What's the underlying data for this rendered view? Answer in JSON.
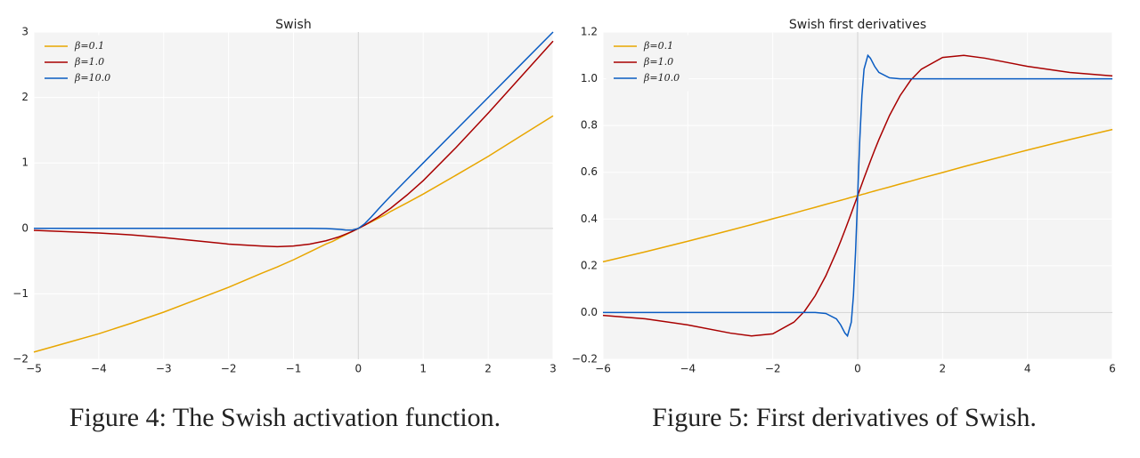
{
  "chart_data": [
    {
      "type": "line",
      "title": "Swish",
      "caption": "Figure 4: The Swish activation function.",
      "x": [
        -5,
        -4.5,
        -4,
        -3.5,
        -3,
        -2.5,
        -2,
        -1.5,
        -1.25,
        -1,
        -0.75,
        -0.5,
        -0.4,
        -0.3,
        -0.2,
        -0.1,
        0,
        0.1,
        0.2,
        0.3,
        0.4,
        0.5,
        0.75,
        1,
        1.5,
        2,
        2.5,
        3
      ],
      "series": [
        {
          "name": "β=0.1",
          "color": "#e8a600",
          "values": [
            -1.89,
            -1.75,
            -1.61,
            -1.45,
            -1.28,
            -1.09,
            -0.9,
            -0.69,
            -0.59,
            -0.48,
            -0.36,
            -0.24,
            -0.2,
            -0.15,
            -0.1,
            -0.05,
            0,
            0.05,
            0.1,
            0.15,
            0.2,
            0.26,
            0.39,
            0.525,
            0.81,
            1.1,
            1.41,
            1.72
          ]
        },
        {
          "name": "β=1.0",
          "color": "#a80000",
          "values": [
            -0.03,
            -0.05,
            -0.07,
            -0.1,
            -0.14,
            -0.19,
            -0.24,
            -0.27,
            -0.28,
            -0.27,
            -0.24,
            -0.19,
            -0.16,
            -0.13,
            -0.09,
            -0.05,
            0,
            0.05,
            0.11,
            0.17,
            0.24,
            0.31,
            0.51,
            0.73,
            1.23,
            1.76,
            2.31,
            2.86
          ]
        },
        {
          "name": "β=10.0",
          "color": "#0a5cc2",
          "values": [
            0,
            0,
            0,
            0,
            0,
            0,
            0,
            0,
            0,
            0,
            0,
            -0.003,
            -0.007,
            -0.014,
            -0.024,
            -0.027,
            0,
            0.073,
            0.176,
            0.286,
            0.393,
            0.497,
            0.75,
            1,
            1.5,
            2,
            2.5,
            3
          ]
        }
      ],
      "xlim": [
        -5,
        3
      ],
      "xticks": [
        {
          "value": -5,
          "label": "−5"
        },
        {
          "value": -4,
          "label": "−4"
        },
        {
          "value": -3,
          "label": "−3"
        },
        {
          "value": -2,
          "label": "−2"
        },
        {
          "value": -1,
          "label": "−1"
        },
        0,
        1,
        2,
        3
      ],
      "ylim": [
        -2,
        3
      ],
      "yticks": [
        {
          "value": -2,
          "label": "−2"
        },
        {
          "value": -1,
          "label": "−1"
        },
        0,
        1,
        2,
        3
      ],
      "grid": true,
      "legend": "upper left"
    },
    {
      "type": "line",
      "title": "Swish first derivatives",
      "caption": "Figure 5: First derivatives of Swish.",
      "x": [
        -6,
        -5,
        -4,
        -3,
        -2.5,
        -2,
        -1.5,
        -1.25,
        -1,
        -0.75,
        -0.5,
        -0.4,
        -0.3,
        -0.24,
        -0.15,
        -0.1,
        -0.05,
        0,
        0.05,
        0.1,
        0.15,
        0.24,
        0.3,
        0.4,
        0.5,
        0.75,
        1,
        1.25,
        1.5,
        2,
        2.5,
        3,
        4,
        5,
        6
      ],
      "series": [
        {
          "name": "β=0.1",
          "color": "#e8a600",
          "values": [
            0.217,
            0.26,
            0.305,
            0.352,
            0.376,
            0.401,
            0.425,
            0.438,
            0.45,
            0.463,
            0.475,
            0.48,
            0.485,
            0.488,
            0.493,
            0.495,
            0.498,
            0.5,
            0.502,
            0.505,
            0.507,
            0.512,
            0.515,
            0.52,
            0.525,
            0.537,
            0.55,
            0.562,
            0.575,
            0.599,
            0.624,
            0.648,
            0.695,
            0.74,
            0.783
          ]
        },
        {
          "name": "β=1.0",
          "color": "#a80000",
          "values": [
            -0.012,
            -0.027,
            -0.053,
            -0.088,
            -0.1,
            -0.091,
            -0.041,
            0.006,
            0.072,
            0.157,
            0.26,
            0.305,
            0.352,
            0.381,
            0.425,
            0.45,
            0.475,
            0.5,
            0.525,
            0.55,
            0.575,
            0.619,
            0.648,
            0.695,
            0.74,
            0.843,
            0.928,
            0.994,
            1.041,
            1.091,
            1.1,
            1.088,
            1.053,
            1.027,
            1.012
          ]
        },
        {
          "name": "β=10.0",
          "color": "#0a5cc2",
          "values": [
            0,
            0,
            0,
            0,
            0,
            0,
            0,
            0,
            0,
            -0.004,
            -0.027,
            -0.053,
            -0.088,
            -0.1,
            -0.041,
            0.072,
            0.26,
            0.5,
            0.74,
            0.928,
            1.041,
            1.1,
            1.088,
            1.053,
            1.027,
            1.004,
            1,
            1,
            1,
            1,
            1,
            1,
            1,
            1,
            1
          ]
        }
      ],
      "xlim": [
        -6,
        6
      ],
      "xticks": [
        {
          "value": -6,
          "label": "−6"
        },
        {
          "value": -4,
          "label": "−4"
        },
        {
          "value": -2,
          "label": "−2"
        },
        0,
        2,
        4,
        6
      ],
      "ylim": [
        -0.2,
        1.2
      ],
      "yticks": [
        {
          "value": -0.2,
          "label": "−0.2"
        },
        {
          "value": 0,
          "label": "0.0"
        },
        0.2,
        0.4,
        0.6,
        0.8,
        {
          "value": 1,
          "label": "1.0"
        },
        1.2
      ],
      "grid": true,
      "legend": "upper left"
    }
  ]
}
